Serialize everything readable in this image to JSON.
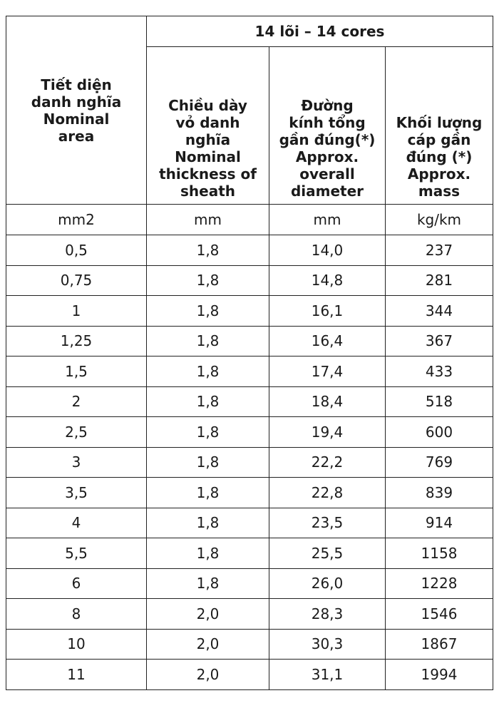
{
  "table": {
    "group_header": "14 lõi – 14 cores",
    "columns": [
      "Tiết diện\ndanh nghĩa\nNominal\narea",
      "Chiều dày\nvỏ danh\nnghĩa\nNominal\nthickness of\nsheath",
      "Đường\nkính tổng\ngần đúng(*)\nApprox.\noverall\ndiameter",
      "Khối lượng\ncáp gần\nđúng (*)\nApprox.\nmass"
    ],
    "units": [
      "mm2",
      "mm",
      "mm",
      "kg/km"
    ],
    "rows": [
      [
        "0,5",
        "1,8",
        "14,0",
        "237"
      ],
      [
        "0,75",
        "1,8",
        "14,8",
        "281"
      ],
      [
        "1",
        "1,8",
        "16,1",
        "344"
      ],
      [
        "1,25",
        "1,8",
        "16,4",
        "367"
      ],
      [
        "1,5",
        "1,8",
        "17,4",
        "433"
      ],
      [
        "2",
        "1,8",
        "18,4",
        "518"
      ],
      [
        "2,5",
        "1,8",
        "19,4",
        "600"
      ],
      [
        "3",
        "1,8",
        "22,2",
        "769"
      ],
      [
        "3,5",
        "1,8",
        "22,8",
        "839"
      ],
      [
        "4",
        "1,8",
        "23,5",
        "914"
      ],
      [
        "5,5",
        "1,8",
        "25,5",
        "1158"
      ],
      [
        "6",
        "1,8",
        "26,0",
        "1228"
      ],
      [
        "8",
        "2,0",
        "28,3",
        "1546"
      ],
      [
        "10",
        "2,0",
        "30,3",
        "1867"
      ],
      [
        "11",
        "2,0",
        "31,1",
        "1994"
      ]
    ]
  }
}
